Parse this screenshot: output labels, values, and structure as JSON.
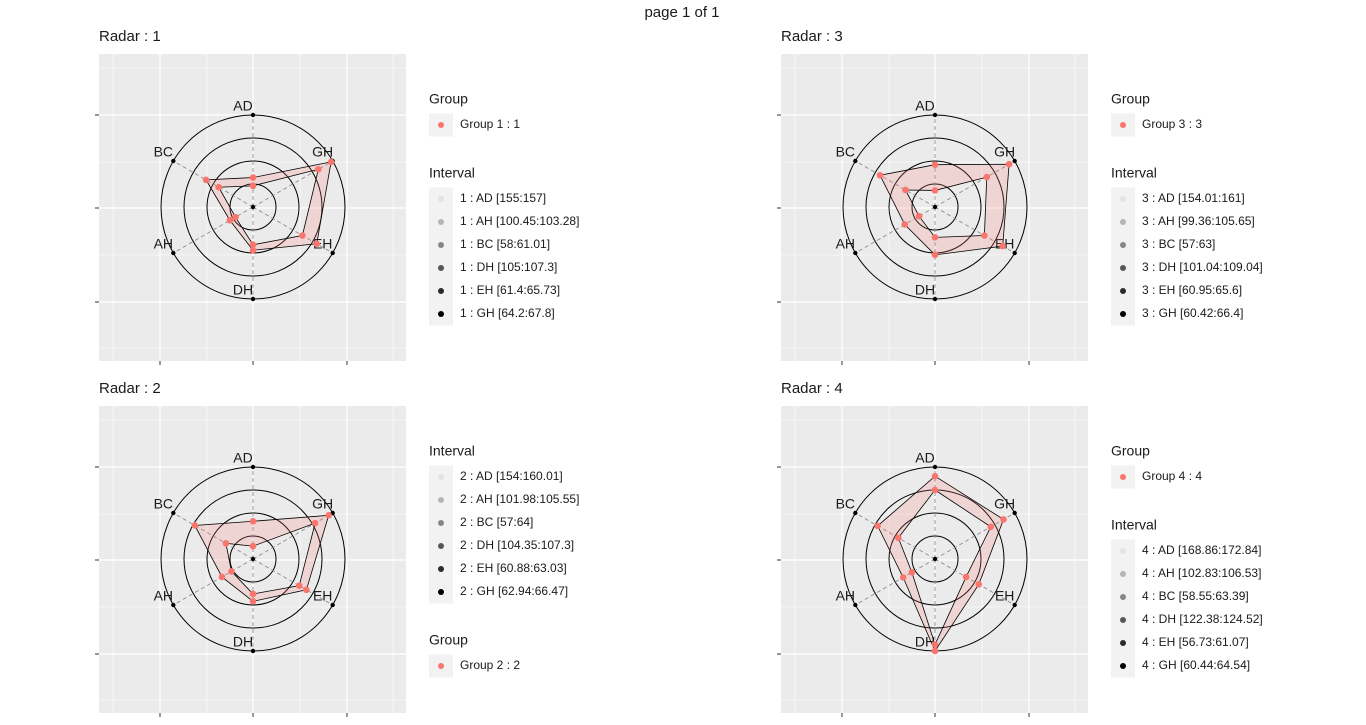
{
  "page_title": "page 1 of 1",
  "chart_data": [
    {
      "type": "radar",
      "title": "Radar : 1",
      "categories": [
        "AD",
        "GH",
        "EH",
        "DH",
        "AH",
        "BC"
      ],
      "rlim": [
        0,
        1
      ],
      "rticks": [
        0.25,
        0.5,
        0.75,
        1
      ],
      "series": [
        {
          "color": "#F8766D",
          "values": [
            0.32,
            0.98,
            0.8,
            0.47,
            0.29,
            0.59
          ]
        },
        {
          "color": "#F8766D",
          "values": [
            0.23,
            0.82,
            0.62,
            0.41,
            0.22,
            0.43
          ]
        }
      ],
      "legends": [
        {
          "title": "Group",
          "items": [
            "Group 1 : 1"
          ],
          "colors": [
            "#F8766D"
          ]
        },
        {
          "title": "Interval",
          "items": [
            "1 : AD [155:157]",
            "1 : AH [100.45:103.28]",
            "1 : BC [58:61.01]",
            "1 : DH [105:107.3]",
            "1 : EH [61.4:65.73]",
            "1 : GH [64.2:67.8]"
          ],
          "colors": [
            "#e3e3e3",
            "#b5b5b5",
            "#878787",
            "#575757",
            "#2b2b2b",
            "#000000"
          ]
        }
      ]
    },
    {
      "type": "radar",
      "title": "Radar : 2",
      "categories": [
        "AD",
        "GH",
        "EH",
        "DH",
        "AH",
        "BC"
      ],
      "rlim": [
        0,
        1
      ],
      "rticks": [
        0.25,
        0.5,
        0.75,
        1
      ],
      "series": [
        {
          "color": "#F8766D",
          "values": [
            0.41,
            0.95,
            0.67,
            0.46,
            0.39,
            0.73
          ]
        },
        {
          "color": "#F8766D",
          "values": [
            0.14,
            0.78,
            0.58,
            0.38,
            0.27,
            0.34
          ]
        }
      ],
      "legends": [
        {
          "title": "Interval",
          "items": [
            "2 : AD [154:160.01]",
            "2 : AH [101.98:105.55]",
            "2 : BC [57:64]",
            "2 : DH [104.35:107.3]",
            "2 : EH [60.88:63.03]",
            "2 : GH [62.94:66.47]"
          ],
          "colors": [
            "#e3e3e3",
            "#b5b5b5",
            "#878787",
            "#575757",
            "#2b2b2b",
            "#000000"
          ]
        },
        {
          "title": "Group",
          "items": [
            "Group 2 : 2"
          ],
          "colors": [
            "#F8766D"
          ]
        }
      ]
    },
    {
      "type": "radar",
      "title": "Radar : 3",
      "categories": [
        "AD",
        "GH",
        "EH",
        "DH",
        "AH",
        "BC"
      ],
      "rlim": [
        0,
        1
      ],
      "rticks": [
        0.25,
        0.5,
        0.75,
        1
      ],
      "series": [
        {
          "color": "#F8766D",
          "values": [
            0.46,
            0.93,
            0.85,
            0.52,
            0.38,
            0.69
          ]
        },
        {
          "color": "#F8766D",
          "values": [
            0.18,
            0.65,
            0.62,
            0.33,
            0.2,
            0.37
          ]
        }
      ],
      "legends": [
        {
          "title": "Group",
          "items": [
            "Group 3 : 3"
          ],
          "colors": [
            "#F8766D"
          ]
        },
        {
          "title": "Interval",
          "items": [
            "3 : AD [154.01:161]",
            "3 : AH [99.36:105.65]",
            "3 : BC [57:63]",
            "3 : DH [101.04:109.04]",
            "3 : EH [60.95:65.6]",
            "3 : GH [60.42:66.4]"
          ],
          "colors": [
            "#e3e3e3",
            "#b5b5b5",
            "#878787",
            "#575757",
            "#2b2b2b",
            "#000000"
          ]
        }
      ]
    },
    {
      "type": "radar",
      "title": "Radar : 4",
      "categories": [
        "AD",
        "GH",
        "EH",
        "DH",
        "AH",
        "BC"
      ],
      "rlim": [
        0,
        1
      ],
      "rticks": [
        0.25,
        0.5,
        0.75,
        1
      ],
      "series": [
        {
          "color": "#F8766D",
          "values": [
            0.9,
            0.86,
            0.55,
            1,
            0.4,
            0.72
          ]
        },
        {
          "color": "#F8766D",
          "values": [
            0.75,
            0.7,
            0.39,
            0.93,
            0.29,
            0.46
          ]
        }
      ],
      "legends": [
        {
          "title": "Group",
          "items": [
            "Group 4 : 4"
          ],
          "colors": [
            "#F8766D"
          ]
        },
        {
          "title": "Interval",
          "items": [
            "4 : AD [168.86:172.84]",
            "4 : AH [102.83:106.53]",
            "4 : BC [58.55:63.39]",
            "4 : DH [122.38:124.52]",
            "4 : EH [56.73:61.07]",
            "4 : GH [60.44:64.54]"
          ],
          "colors": [
            "#e3e3e3",
            "#b5b5b5",
            "#878787",
            "#575757",
            "#2b2b2b",
            "#000000"
          ]
        }
      ]
    }
  ]
}
